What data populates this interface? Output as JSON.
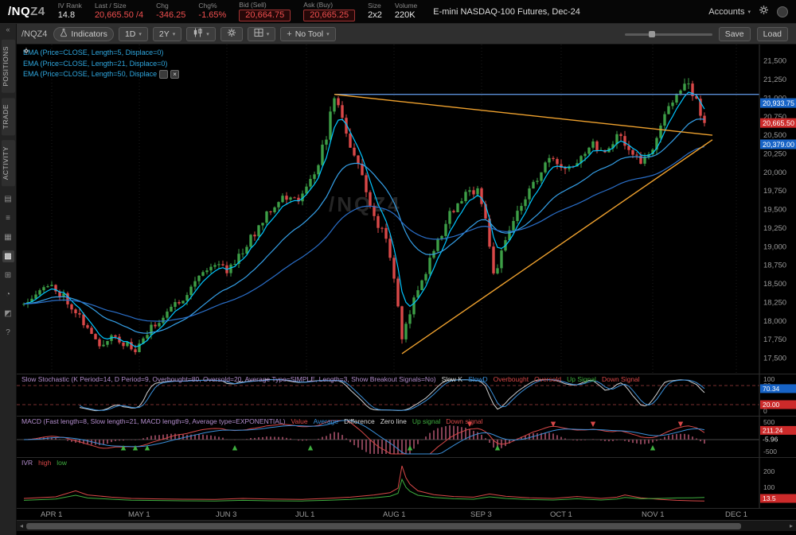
{
  "colors": {
    "up": "#3d9e46",
    "down": "#d94848",
    "ema5": "#00c5ff",
    "ema21": "#35a0e8",
    "ema50": "#2a6fc9",
    "trend": "#f0a22e",
    "hline": "#5b8fd9",
    "blue_box": "#1763c6",
    "red_box": "#cc2a2a",
    "title_violet": "#b48ece",
    "green": "#3fae3f",
    "blue": "#3a8fd9",
    "white": "#d8d8d8",
    "red": "#d94848",
    "axis_text": "#9a9a9a"
  },
  "header": {
    "symbol_root": "/NQ",
    "symbol_month": "Z4",
    "fields": [
      {
        "label": "IV Rank",
        "value": "14.8",
        "tone": "white"
      },
      {
        "label": "Last / Size",
        "value": "20,665.50 /4",
        "tone": "red"
      },
      {
        "label": "Chg",
        "value": "-346.25",
        "tone": "red"
      },
      {
        "label": "Chg%",
        "value": "-1.65%",
        "tone": "red"
      },
      {
        "label": "Bid (Sell)",
        "value": "20,664.75",
        "tone": "red",
        "boxed": true
      },
      {
        "label": "Ask (Buy)",
        "value": "20,665.25",
        "tone": "red",
        "boxed": true
      },
      {
        "label": "Size",
        "value": "2x2",
        "tone": "white"
      },
      {
        "label": "Volume",
        "value": "220K",
        "tone": "white"
      }
    ],
    "description": "E-mini NASDAQ-100 Futures, Dec-24",
    "accounts_label": "Accounts"
  },
  "sidebar": {
    "tabs": [
      {
        "label": "POSITIONS"
      },
      {
        "label": "TRADE"
      },
      {
        "label": "ACTIVITY"
      }
    ],
    "icons": [
      {
        "glyph": "▤",
        "name": "monitor"
      },
      {
        "glyph": "≡",
        "name": "watchlist"
      },
      {
        "glyph": "▦",
        "name": "calendar"
      },
      {
        "glyph": "▩",
        "name": "charts",
        "active": true
      },
      {
        "glyph": "⊞",
        "name": "flexible-grid"
      },
      {
        "glyph": "◔",
        "name": "history"
      },
      {
        "glyph": "◩",
        "name": "scan"
      },
      {
        "glyph": "?",
        "name": "help"
      }
    ]
  },
  "toolbar": {
    "symbol_label": "/NQZ4",
    "indicators_label": "Indicators",
    "aggregation": "1D",
    "range": "2Y",
    "tool_label": "No Tool",
    "save_label": "Save",
    "load_label": "Load"
  },
  "chart": {
    "watermark": "/NQZ4",
    "studies": [
      "EMA (Price=CLOSE, Length=5, Displace=0)",
      "EMA (Price=CLOSE, Length=21, Displace=0)",
      "EMA (Price=CLOSE, Length=50, Displace"
    ],
    "price_labels": [
      {
        "text": "20,933.75",
        "value": 20933.75,
        "color": "blue"
      },
      {
        "text": "20,665.50",
        "value": 20665.5,
        "color": "red"
      },
      {
        "text": "20,379.00",
        "value": 20379,
        "color": "blue"
      }
    ]
  },
  "chart_data": {
    "type": "candlestick",
    "symbol": "/NQZ4",
    "num_candles": 172,
    "y_axis": {
      "min": 17300,
      "max": 21700,
      "tick_step": 250,
      "ticks": [
        21500,
        21250,
        21000,
        20750,
        20500,
        20250,
        20000,
        19750,
        19500,
        19250,
        19000,
        18750,
        18500,
        18250,
        18000,
        17750,
        17500
      ]
    },
    "x_labels": [
      {
        "text": "APR 1",
        "day": 7
      },
      {
        "text": "MAY 1",
        "day": 29
      },
      {
        "text": "JUN 3",
        "day": 51
      },
      {
        "text": "JUL 1",
        "day": 71
      },
      {
        "text": "AUG 1",
        "day": 93
      },
      {
        "text": "SEP 3",
        "day": 115
      },
      {
        "text": "OCT 1",
        "day": 135
      },
      {
        "text": "NOV 1",
        "day": 158
      },
      {
        "text": "DEC 1",
        "day": 179
      }
    ],
    "close_waypoints": [
      [
        0,
        18260
      ],
      [
        4,
        18430
      ],
      [
        7,
        18460
      ],
      [
        10,
        18340
      ],
      [
        13,
        18140
      ],
      [
        16,
        17900
      ],
      [
        19,
        17640
      ],
      [
        22,
        17830
      ],
      [
        25,
        17700
      ],
      [
        28,
        17600
      ],
      [
        32,
        17900
      ],
      [
        36,
        18130
      ],
      [
        40,
        18320
      ],
      [
        44,
        18620
      ],
      [
        48,
        18780
      ],
      [
        51,
        18690
      ],
      [
        54,
        18880
      ],
      [
        58,
        19180
      ],
      [
        61,
        19470
      ],
      [
        65,
        19670
      ],
      [
        68,
        19620
      ],
      [
        71,
        19760
      ],
      [
        74,
        20150
      ],
      [
        76,
        20500
      ],
      [
        78,
        21030
      ],
      [
        80,
        20740
      ],
      [
        82,
        20360
      ],
      [
        85,
        19940
      ],
      [
        88,
        19400
      ],
      [
        91,
        19100
      ],
      [
        93,
        18620
      ],
      [
        95,
        17720
      ],
      [
        97,
        18140
      ],
      [
        99,
        18400
      ],
      [
        103,
        18950
      ],
      [
        107,
        19440
      ],
      [
        111,
        19680
      ],
      [
        114,
        19800
      ],
      [
        116,
        19400
      ],
      [
        118,
        18620
      ],
      [
        120,
        18900
      ],
      [
        124,
        19480
      ],
      [
        128,
        19840
      ],
      [
        132,
        20180
      ],
      [
        135,
        20020
      ],
      [
        139,
        20180
      ],
      [
        143,
        20400
      ],
      [
        146,
        20270
      ],
      [
        149,
        20520
      ],
      [
        152,
        20330
      ],
      [
        155,
        20130
      ],
      [
        158,
        20280
      ],
      [
        160,
        20620
      ],
      [
        163,
        21000
      ],
      [
        164,
        21060
      ],
      [
        166,
        21190
      ],
      [
        168,
        21080
      ],
      [
        169,
        20940
      ],
      [
        170,
        20800
      ],
      [
        171,
        20665.5
      ]
    ],
    "last_price": 20665.5,
    "emas": [
      5,
      21,
      50
    ],
    "trendlines": [
      {
        "type": "hline",
        "color": "blue",
        "price": 21050,
        "from_day": 78
      },
      {
        "type": "line",
        "color": "orange",
        "from_day": 78,
        "from_price": 21050,
        "to_day": 173,
        "to_price": 20500
      },
      {
        "type": "line",
        "color": "orange",
        "from_day": 95,
        "from_price": 17560,
        "to_day": 173,
        "to_price": 20440
      }
    ]
  },
  "stoch": {
    "title": "Slow Stochastic (K Period=14, D Period=9, Overbought=80, Oversold=20, Average Type=SIMPLE, Length=3, Show Breakout Signals=No)",
    "legend": [
      {
        "text": "Slow K",
        "color": "#d8d8d8"
      },
      {
        "text": "SlowD",
        "color": "#3a8fd9"
      },
      {
        "text": "Overbought",
        "color": "#d94848"
      },
      {
        "text": "Oversold",
        "color": "#d94848"
      },
      {
        "text": "Up Signal",
        "color": "#3fae3f"
      },
      {
        "text": "Down Signal",
        "color": "#d94848"
      }
    ],
    "overbought": 80,
    "oversold": 20,
    "axis_labels": [
      {
        "text": "100",
        "value": 100
      },
      {
        "text": "80",
        "value": 80
      },
      {
        "text": "0",
        "value": 0
      }
    ],
    "value_boxes": [
      {
        "text": "70.34",
        "value": 70.34,
        "color": "blue"
      },
      {
        "text": "20.00",
        "value": 20,
        "color": "red"
      }
    ]
  },
  "macd": {
    "title": "MACD (Fast length=8, Slow length=21, MACD length=9, Average type=EXPONENTIAL)",
    "legend": [
      {
        "text": "Value",
        "color": "#d94848"
      },
      {
        "text": "Average",
        "color": "#3a8fd9"
      },
      {
        "text": "Difference",
        "color": "#d8d8d8"
      },
      {
        "text": "Zero line",
        "color": "#d8d8d8"
      },
      {
        "text": "Up signal",
        "color": "#3fae3f"
      },
      {
        "text": "Down signal",
        "color": "#d94848"
      }
    ],
    "axis_labels": [
      {
        "text": "500",
        "y": 10
      },
      {
        "text": "-500",
        "y": 47
      }
    ],
    "value_box": {
      "text": "211.24",
      "value": 211.24
    },
    "current_diff": "-5.96",
    "up_signal_days": [
      25,
      28,
      31,
      53,
      72,
      97,
      119,
      158
    ],
    "down_signal_days": [
      112,
      133,
      143,
      165
    ]
  },
  "ivr": {
    "title": "IVR",
    "legend": [
      {
        "text": "high",
        "color": "#d94848"
      },
      {
        "text": "low",
        "color": "#3fae3f"
      }
    ],
    "axis_labels": [
      {
        "text": "200",
        "value": 200
      },
      {
        "text": "100",
        "value": 100
      }
    ],
    "value_box": {
      "text": "13.5",
      "value": 13.5
    },
    "high_points": [
      [
        0,
        30
      ],
      [
        8,
        40
      ],
      [
        13,
        78
      ],
      [
        16,
        52
      ],
      [
        22,
        38
      ],
      [
        27,
        30
      ],
      [
        34,
        27
      ],
      [
        40,
        25
      ],
      [
        48,
        24
      ],
      [
        55,
        30
      ],
      [
        62,
        26
      ],
      [
        70,
        24
      ],
      [
        76,
        30
      ],
      [
        82,
        38
      ],
      [
        88,
        52
      ],
      [
        92,
        66
      ],
      [
        94,
        95
      ],
      [
        95,
        235
      ],
      [
        96,
        160
      ],
      [
        97,
        120
      ],
      [
        99,
        78
      ],
      [
        103,
        54
      ],
      [
        108,
        42
      ],
      [
        113,
        38
      ],
      [
        117,
        58
      ],
      [
        121,
        44
      ],
      [
        127,
        34
      ],
      [
        133,
        30
      ],
      [
        139,
        42
      ],
      [
        145,
        30
      ],
      [
        149,
        38
      ],
      [
        151,
        52
      ],
      [
        155,
        34
      ],
      [
        160,
        24
      ],
      [
        164,
        18
      ],
      [
        168,
        15
      ],
      [
        171,
        14
      ]
    ],
    "low_points": [
      [
        0,
        18
      ],
      [
        8,
        26
      ],
      [
        13,
        50
      ],
      [
        16,
        33
      ],
      [
        22,
        25
      ],
      [
        27,
        19
      ],
      [
        34,
        17
      ],
      [
        40,
        15
      ],
      [
        48,
        14
      ],
      [
        55,
        18
      ],
      [
        62,
        15
      ],
      [
        70,
        14
      ],
      [
        76,
        18
      ],
      [
        82,
        24
      ],
      [
        88,
        34
      ],
      [
        92,
        44
      ],
      [
        94,
        62
      ],
      [
        95,
        150
      ],
      [
        96,
        100
      ],
      [
        97,
        75
      ],
      [
        99,
        50
      ],
      [
        103,
        36
      ],
      [
        108,
        28
      ],
      [
        113,
        25
      ],
      [
        117,
        40
      ],
      [
        121,
        30
      ],
      [
        127,
        23
      ],
      [
        133,
        20
      ],
      [
        139,
        28
      ],
      [
        145,
        20
      ],
      [
        149,
        26
      ],
      [
        151,
        36
      ],
      [
        155,
        28
      ],
      [
        160,
        30
      ],
      [
        164,
        33
      ],
      [
        168,
        34
      ],
      [
        171,
        36
      ]
    ],
    "range": 260
  }
}
